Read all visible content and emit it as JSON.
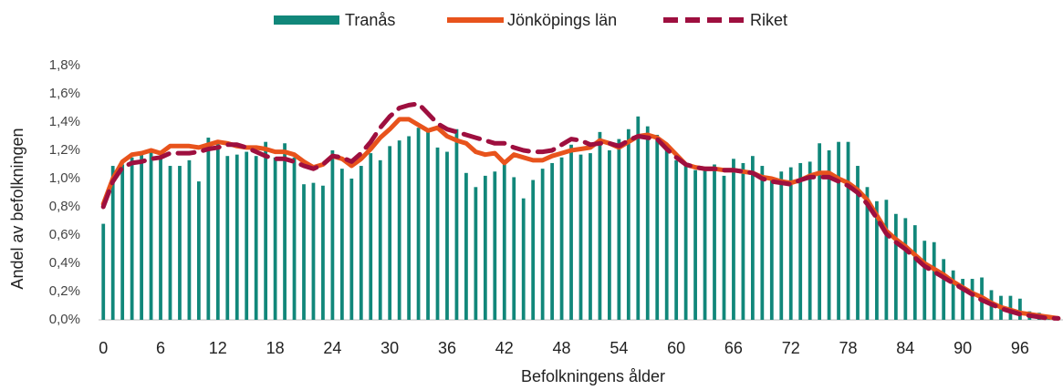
{
  "chart_data": {
    "type": "bar-line",
    "x_label": "Befolkningens ålder",
    "y_label": "Andel av befolkningen",
    "x": [
      0,
      1,
      2,
      3,
      4,
      5,
      6,
      7,
      8,
      9,
      10,
      11,
      12,
      13,
      14,
      15,
      16,
      17,
      18,
      19,
      20,
      21,
      22,
      23,
      24,
      25,
      26,
      27,
      28,
      29,
      30,
      31,
      32,
      33,
      34,
      35,
      36,
      37,
      38,
      39,
      40,
      41,
      42,
      43,
      44,
      45,
      46,
      47,
      48,
      49,
      50,
      51,
      52,
      53,
      54,
      55,
      56,
      57,
      58,
      59,
      60,
      61,
      62,
      63,
      64,
      65,
      66,
      67,
      68,
      69,
      70,
      71,
      72,
      73,
      74,
      75,
      76,
      77,
      78,
      79,
      80,
      81,
      82,
      83,
      84,
      85,
      86,
      87,
      88,
      89,
      90,
      91,
      92,
      93,
      94,
      95,
      96,
      97,
      98,
      99,
      100
    ],
    "xlim": [
      -0.5,
      100.5
    ],
    "xticks": [
      0,
      6,
      12,
      18,
      24,
      30,
      36,
      42,
      48,
      54,
      60,
      66,
      72,
      78,
      84,
      90,
      96
    ],
    "ylim": [
      0,
      1.8
    ],
    "yticks": [
      {
        "value": 0,
        "label": "0,0%"
      },
      {
        "value": 0.2,
        "label": "0,2%"
      },
      {
        "value": 0.4,
        "label": "0,4%"
      },
      {
        "value": 0.6,
        "label": "0,6%"
      },
      {
        "value": 0.8,
        "label": "0,8%"
      },
      {
        "value": 1.0,
        "label": "1,0%"
      },
      {
        "value": 1.2,
        "label": "1,2%"
      },
      {
        "value": 1.4,
        "label": "1,4%"
      },
      {
        "value": 1.6,
        "label": "1,6%"
      },
      {
        "value": 1.8,
        "label": "1,8%"
      }
    ],
    "grid": false,
    "legend": "top",
    "series": [
      {
        "name": "Tranås",
        "kind": "bar",
        "color": "#11877a",
        "values": [
          0.68,
          1.09,
          1.1,
          1.15,
          1.18,
          1.2,
          1.16,
          1.09,
          1.09,
          1.13,
          0.98,
          1.29,
          1.27,
          1.16,
          1.17,
          1.19,
          1.16,
          1.26,
          1.15,
          1.25,
          1.15,
          0.96,
          0.97,
          0.95,
          1.2,
          1.07,
          1.0,
          1.09,
          1.18,
          1.13,
          1.23,
          1.27,
          1.3,
          1.36,
          1.33,
          1.22,
          1.19,
          1.35,
          1.04,
          0.94,
          1.02,
          1.05,
          1.1,
          1.01,
          0.86,
          0.99,
          1.07,
          1.11,
          1.15,
          1.24,
          1.17,
          1.18,
          1.33,
          1.2,
          1.28,
          1.35,
          1.44,
          1.37,
          1.31,
          1.21,
          1.13,
          1.1,
          1.06,
          1.08,
          1.1,
          1.02,
          1.14,
          1.11,
          1.16,
          1.09,
          1.0,
          1.05,
          1.08,
          1.11,
          1.12,
          1.25,
          1.2,
          1.26,
          1.26,
          1.09,
          0.94,
          0.84,
          0.85,
          0.75,
          0.72,
          0.67,
          0.56,
          0.55,
          0.43,
          0.35,
          0.29,
          0.29,
          0.3,
          0.21,
          0.17,
          0.17,
          0.15,
          0.06,
          0.05,
          0.03,
          0.01
        ]
      },
      {
        "name": "Jönköpings län",
        "kind": "line",
        "color": "#e8531c",
        "values": [
          0.82,
          1.0,
          1.12,
          1.17,
          1.18,
          1.2,
          1.18,
          1.23,
          1.23,
          1.23,
          1.22,
          1.24,
          1.26,
          1.25,
          1.23,
          1.22,
          1.22,
          1.21,
          1.19,
          1.19,
          1.17,
          1.12,
          1.08,
          1.1,
          1.16,
          1.14,
          1.09,
          1.14,
          1.21,
          1.29,
          1.35,
          1.42,
          1.42,
          1.38,
          1.34,
          1.36,
          1.3,
          1.27,
          1.25,
          1.19,
          1.17,
          1.18,
          1.11,
          1.17,
          1.15,
          1.13,
          1.13,
          1.16,
          1.18,
          1.2,
          1.21,
          1.22,
          1.27,
          1.25,
          1.22,
          1.26,
          1.3,
          1.31,
          1.29,
          1.24,
          1.17,
          1.1,
          1.08,
          1.07,
          1.07,
          1.06,
          1.06,
          1.05,
          1.04,
          1.01,
          1.0,
          0.98,
          0.97,
          0.99,
          1.02,
          1.04,
          1.04,
          1.0,
          0.97,
          0.92,
          0.85,
          0.74,
          0.63,
          0.57,
          0.52,
          0.46,
          0.4,
          0.36,
          0.32,
          0.27,
          0.23,
          0.19,
          0.16,
          0.12,
          0.09,
          0.07,
          0.05,
          0.04,
          0.03,
          0.02,
          0.01
        ]
      },
      {
        "name": "Riket",
        "kind": "dashed-line",
        "color": "#9e0f3f",
        "values": [
          0.8,
          0.98,
          1.08,
          1.11,
          1.12,
          1.14,
          1.15,
          1.18,
          1.18,
          1.18,
          1.19,
          1.21,
          1.22,
          1.24,
          1.24,
          1.22,
          1.19,
          1.16,
          1.14,
          1.14,
          1.12,
          1.09,
          1.07,
          1.1,
          1.16,
          1.15,
          1.12,
          1.18,
          1.26,
          1.36,
          1.44,
          1.5,
          1.52,
          1.53,
          1.46,
          1.39,
          1.35,
          1.33,
          1.31,
          1.29,
          1.27,
          1.25,
          1.25,
          1.22,
          1.2,
          1.19,
          1.19,
          1.2,
          1.24,
          1.28,
          1.27,
          1.24,
          1.25,
          1.25,
          1.23,
          1.27,
          1.3,
          1.29,
          1.28,
          1.21,
          1.15,
          1.1,
          1.08,
          1.07,
          1.07,
          1.06,
          1.06,
          1.05,
          1.04,
          1.0,
          0.98,
          0.97,
          0.96,
          0.99,
          1.01,
          1.01,
          1.01,
          0.98,
          0.95,
          0.9,
          0.82,
          0.72,
          0.61,
          0.55,
          0.5,
          0.44,
          0.38,
          0.34,
          0.3,
          0.26,
          0.22,
          0.18,
          0.14,
          0.11,
          0.08,
          0.06,
          0.04,
          0.03,
          0.02,
          0.01,
          0.01
        ]
      }
    ]
  }
}
